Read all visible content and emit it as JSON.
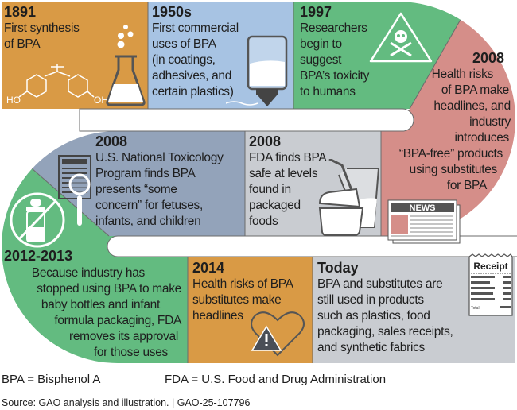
{
  "colors": {
    "orange": "#d99a45",
    "blue": "#a7c3e3",
    "green": "#63bb80",
    "pink": "#d58e89",
    "slate": "#93a3ba",
    "light_gray": "#c9ccd1",
    "divider": "#6b6b6b"
  },
  "timeline": [
    {
      "id": "1891",
      "title": "1891",
      "lines": [
        "First synthesis",
        "of BPA"
      ],
      "icons": [
        "bpa-molecule-icon",
        "flask-icon"
      ],
      "molecule_labels": [
        "HO",
        "OH"
      ]
    },
    {
      "id": "1950s",
      "title": "1950s",
      "lines": [
        "First commercial",
        "uses of BPA",
        "(in coatings,",
        "adhesives, and",
        "certain plastics)"
      ],
      "icons": [
        "glue-bottle-icon"
      ]
    },
    {
      "id": "1997",
      "title": "1997",
      "lines": [
        "Researchers",
        "begin to",
        "suggest",
        "BPA’s toxicity",
        "to humans"
      ],
      "icons": [
        "toxic-warning-icon"
      ]
    },
    {
      "id": "2008a",
      "title": "2008",
      "lines": [
        "Health risks",
        "of BPA make",
        "headlines, and",
        "industry",
        "introduces",
        "“BPA-free” products",
        "using substitutes",
        "for BPA"
      ],
      "icons": [
        "newspaper-icon"
      ],
      "newspaper_label": "NEWS"
    },
    {
      "id": "2008b",
      "title": "2008",
      "lines": [
        "U.S. National Toxicology",
        "Program finds BPA",
        "presents “some",
        "concern” for fetuses,",
        "infants, and children"
      ],
      "icons": [
        "document-magnifier-icon"
      ]
    },
    {
      "id": "2008c",
      "title": "2008",
      "lines": [
        "FDA finds BPA",
        "safe at levels",
        "found in",
        "packaged",
        "foods"
      ],
      "icons": [
        "food-container-cup-icon"
      ]
    },
    {
      "id": "2012",
      "title": "2012-2013",
      "lines": [
        "Because industry has",
        "stopped using BPA to make",
        "baby bottles and infant",
        "formula packaging, FDA",
        "removes its approval",
        "for those uses"
      ],
      "icons": [
        "no-baby-bottle-icon"
      ]
    },
    {
      "id": "2014",
      "title": "2014",
      "lines": [
        "Health risks of BPA",
        "substitutes make",
        "headlines"
      ],
      "icons": [
        "heart-warning-icon"
      ]
    },
    {
      "id": "today",
      "title": "Today",
      "lines": [
        "BPA and substitutes are",
        "still used in products",
        "such as plastics, food",
        "packaging, sales receipts,",
        "and synthetic fabrics"
      ],
      "icons": [
        "receipt-icon"
      ],
      "receipt_label": "Receipt",
      "receipt_total": "Total"
    }
  ],
  "footer": {
    "bpa_def": "BPA = Bisphenol A",
    "fda_def": "FDA = U.S. Food and Drug Administration",
    "source": "Source: GAO analysis and illustration.  |  GAO-25-107796"
  }
}
